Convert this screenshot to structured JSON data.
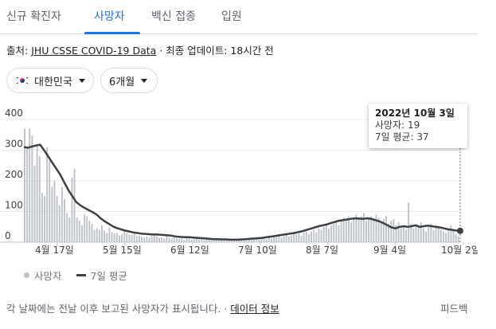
{
  "tabs": [
    {
      "label": "신규 확진자"
    },
    {
      "label": "사망자",
      "active": true
    },
    {
      "label": "백신 접종"
    },
    {
      "label": "입원"
    }
  ],
  "source": {
    "prefix": "출처:",
    "link": "JHU CSSE COVID-19 Data",
    "suffix": "· 최종 업데이트: 18시간 전"
  },
  "filters": {
    "country": "대한민국",
    "period": "6개월"
  },
  "tooltip": {
    "date": "2022년 10월 3일",
    "deaths": "사망자: 19",
    "avg": "7일 평균: 37"
  },
  "legend": {
    "deaths": "사망자",
    "avg": "7일 평균"
  },
  "footer": {
    "text": "각 날짜에는 전날 이후 보고된 사망자가 표시됩니다. ·",
    "link": "데이터 정보",
    "feedback": "피드백"
  },
  "colors": {
    "accent": "#1a73e8",
    "bar": "#bdc1c6",
    "line": "#3c4043"
  },
  "chart_data": {
    "type": "bar",
    "ylim": [
      0,
      400
    ],
    "yticks": [
      0,
      100,
      200,
      300,
      400
    ],
    "xticks": [
      "4월 17일",
      "5월 15일",
      "6월 12일",
      "7월 10일",
      "8월 7일",
      "9월 4일",
      "10월 2일"
    ],
    "series": [
      {
        "name": "사망자",
        "values": [
          370,
          310,
          370,
          348,
          250,
          320,
          280,
          160,
          150,
          310,
          265,
          180,
          200,
          150,
          120,
          180,
          140,
          95,
          80,
          210,
          240,
          80,
          70,
          55,
          90,
          85,
          70,
          60,
          40,
          45,
          40,
          55,
          38,
          30,
          48,
          33,
          28,
          30,
          22,
          25,
          35,
          30,
          25,
          24,
          28,
          20,
          22,
          18,
          16,
          18,
          15,
          20,
          25,
          18,
          14,
          15,
          12,
          20,
          15,
          12,
          15,
          12,
          10,
          12,
          8,
          15,
          12,
          8,
          10,
          12,
          8,
          10,
          7,
          8,
          10,
          12,
          8,
          10,
          7,
          8,
          6,
          9,
          7,
          5,
          8,
          10,
          6,
          7,
          8,
          5,
          12,
          8,
          10,
          9,
          15,
          14,
          18,
          10,
          15,
          12,
          20,
          18,
          25,
          15,
          20,
          25,
          18,
          22,
          30,
          25,
          28,
          20,
          30,
          35,
          25,
          35,
          40,
          32,
          45,
          40,
          50,
          55,
          45,
          55,
          60,
          65,
          55,
          75,
          80,
          70,
          85,
          65,
          80,
          90,
          75,
          85,
          95,
          70,
          80,
          85,
          70,
          90,
          80,
          65,
          75,
          85,
          60,
          70,
          75,
          55,
          65,
          45,
          50,
          40,
          130,
          60,
          45,
          55,
          50,
          65,
          45,
          35,
          50,
          60,
          40,
          55,
          50,
          40,
          35,
          30,
          45,
          55,
          40,
          25,
          19
        ]
      },
      {
        "name": "7일 평균",
        "values": [
          310,
          308,
          312,
          315,
          318,
          300,
          280,
          260,
          240,
          220,
          195,
          170,
          150,
          130,
          120,
          112,
          105,
          98,
          90,
          78,
          68,
          60,
          52,
          46,
          42,
          38,
          35,
          32,
          30,
          28,
          27,
          26,
          25,
          25,
          24,
          23,
          22,
          20,
          18,
          17,
          16,
          16,
          15,
          14,
          13,
          12,
          11,
          10,
          10,
          9,
          9,
          8,
          8,
          8,
          9,
          10,
          11,
          12,
          13,
          14,
          16,
          18,
          20,
          22,
          24,
          26,
          28,
          30,
          33,
          36,
          40,
          44,
          48,
          52,
          55,
          58,
          62,
          66,
          70,
          72,
          74,
          76,
          78,
          77,
          76,
          78,
          76,
          72,
          68,
          62,
          55,
          48,
          45,
          50,
          52,
          50,
          52,
          55,
          50,
          52,
          54,
          52,
          50,
          48,
          45,
          42,
          40,
          38,
          37
        ]
      }
    ]
  }
}
